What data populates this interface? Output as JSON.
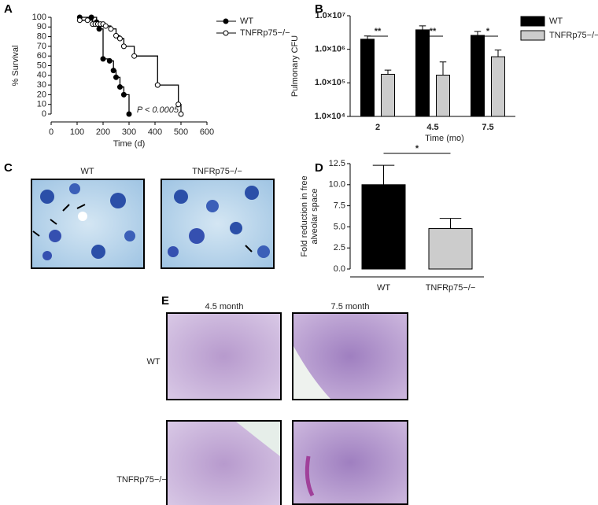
{
  "chart_data": [
    {
      "panel": "A",
      "type": "step",
      "xlabel": "Time (d)",
      "ylabel": "% Survival",
      "xlim": [
        0,
        600
      ],
      "xticks": [
        0,
        100,
        200,
        300,
        400,
        500,
        600
      ],
      "ylim": [
        0,
        100
      ],
      "yticks": [
        0,
        10,
        20,
        30,
        40,
        50,
        60,
        70,
        80,
        90,
        100
      ],
      "annotation": "P < 0.0005",
      "series": [
        {
          "name": "WT",
          "color": "#000000",
          "marker_fill": "#000000",
          "x": [
            110,
            155,
            175,
            185,
            200,
            225,
            240,
            250,
            265,
            280,
            300
          ],
          "values": [
            100,
            100,
            95,
            88,
            57,
            55,
            45,
            38,
            28,
            20,
            0
          ]
        },
        {
          "name": "TNFRp75−/−",
          "color": "#000000",
          "marker_fill": "#ffffff",
          "x": [
            110,
            140,
            160,
            170,
            180,
            190,
            200,
            210,
            230,
            250,
            265,
            280,
            320,
            410,
            490,
            500
          ],
          "values": [
            97,
            97,
            93,
            93,
            93,
            93,
            93,
            91,
            88,
            81,
            78,
            70,
            60,
            30,
            10,
            0
          ]
        }
      ]
    },
    {
      "panel": "B",
      "type": "bar",
      "log": true,
      "xlabel": "Time (mo)",
      "ylabel": "Pulmonary CFU",
      "categories": [
        "2",
        "4.5",
        "7.5"
      ],
      "ylim": [
        10000,
        10000000
      ],
      "yticks": [
        {
          "value": 10000,
          "label": "1.0×10⁴"
        },
        {
          "value": 100000,
          "label": "1.0×10⁵"
        },
        {
          "value": 1000000,
          "label": "1.0×10⁶"
        },
        {
          "value": 10000000,
          "label": "1.0×10⁷"
        }
      ],
      "significance": [
        "**",
        "**",
        "*"
      ],
      "series": [
        {
          "name": "WT",
          "color": "#000000",
          "values": [
            2000000,
            3800000,
            2600000
          ],
          "errors": [
            500000,
            1200000,
            800000
          ]
        },
        {
          "name": "TNFRp75−/−",
          "color": "#cccccc",
          "values": [
            180000,
            170000,
            600000
          ],
          "errors": [
            60000,
            250000,
            350000
          ]
        }
      ]
    },
    {
      "panel": "D",
      "type": "bar",
      "ylabel": [
        "Fold reduction in free",
        "alveolar space"
      ],
      "categories": [
        "WT",
        "TNFRp75−/−"
      ],
      "ylim": [
        0,
        12.5
      ],
      "yticks": [
        {
          "value": 0,
          "label": "0.0"
        },
        {
          "value": 2.5,
          "label": "2.5"
        },
        {
          "value": 5,
          "label": "5.0"
        },
        {
          "value": 7.5,
          "label": "7.5"
        },
        {
          "value": 10,
          "label": "10.0"
        },
        {
          "value": 12.5,
          "label": "12.5"
        }
      ],
      "significance": [
        "*"
      ],
      "series": [
        {
          "colors": [
            "#000000",
            "#cccccc"
          ],
          "values": [
            10.0,
            4.8
          ],
          "errors": [
            2.3,
            1.2
          ]
        }
      ]
    }
  ],
  "figure_c": {
    "panel": "C",
    "captions": [
      "WT",
      "TNFRp75−/−"
    ]
  },
  "figure_e": {
    "panel": "E",
    "columns": [
      "4.5 month",
      "7.5 month"
    ],
    "rows": [
      "WT",
      "TNFRp75−/−"
    ]
  }
}
